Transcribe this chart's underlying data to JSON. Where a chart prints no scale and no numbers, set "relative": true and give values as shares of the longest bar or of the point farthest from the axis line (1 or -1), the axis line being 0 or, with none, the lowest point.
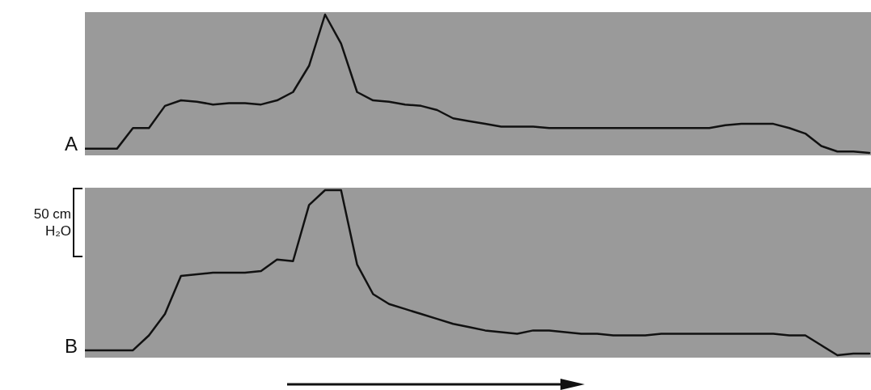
{
  "chart_data": [
    {
      "type": "line",
      "relative": true,
      "categories": [
        null,
        null,
        null,
        null,
        null,
        null,
        null,
        null,
        null,
        null,
        null,
        null,
        null,
        null,
        null,
        null,
        null,
        null,
        null,
        null,
        null,
        null,
        null,
        null,
        null,
        null,
        null,
        null,
        null,
        null,
        null,
        null,
        null,
        null,
        null,
        null,
        null,
        null,
        null,
        null,
        null,
        null,
        null,
        null,
        null,
        null,
        null,
        null,
        null,
        null
      ],
      "series": [
        {
          "color": "#111111",
          "values": [
            0.03,
            0.03,
            0.03,
            0.18,
            0.18,
            0.34,
            0.38,
            0.37,
            0.35,
            0.36,
            0.36,
            0.35,
            0.38,
            0.44,
            0.63,
            1,
            0.79,
            0.44,
            0.38,
            0.37,
            0.35,
            0.34,
            0.31,
            0.25,
            0.23,
            0.21,
            0.19,
            0.19,
            0.19,
            0.18,
            0.18,
            0.18,
            0.18,
            0.18,
            0.18,
            0.18,
            0.18,
            0.18,
            0.18,
            0.18,
            0.2,
            0.21,
            0.21,
            0.21,
            0.18,
            0.14,
            0.05,
            0.01,
            0.01,
            0
          ]
        }
      ],
      "annotations": [
        "A"
      ],
      "marker": "none",
      "legend": false
    },
    {
      "type": "line",
      "relative": true,
      "categories": [
        null,
        null,
        null,
        null,
        null,
        null,
        null,
        null,
        null,
        null,
        null,
        null,
        null,
        null,
        null,
        null,
        null,
        null,
        null,
        null,
        null,
        null,
        null,
        null,
        null,
        null,
        null,
        null,
        null,
        null,
        null,
        null,
        null,
        null,
        null,
        null,
        null,
        null,
        null,
        null,
        null,
        null,
        null,
        null,
        null,
        null,
        null,
        null,
        null,
        null
      ],
      "series": [
        {
          "color": "#111111",
          "values": [
            0.03,
            0.03,
            0.03,
            0.03,
            0.12,
            0.25,
            0.48,
            0.49,
            0.5,
            0.5,
            0.5,
            0.51,
            0.58,
            0.57,
            0.91,
            1,
            1,
            0.55,
            0.37,
            0.31,
            0.28,
            0.25,
            0.22,
            0.19,
            0.17,
            0.15,
            0.14,
            0.13,
            0.15,
            0.15,
            0.14,
            0.13,
            0.13,
            0.12,
            0.12,
            0.12,
            0.13,
            0.13,
            0.13,
            0.13,
            0.13,
            0.13,
            0.13,
            0.13,
            0.12,
            0.12,
            0.06,
            0,
            0.01,
            0.01
          ]
        }
      ],
      "annotations": [
        "B",
        "50 cm H₂O"
      ],
      "marker": "none",
      "legend": false
    }
  ]
}
